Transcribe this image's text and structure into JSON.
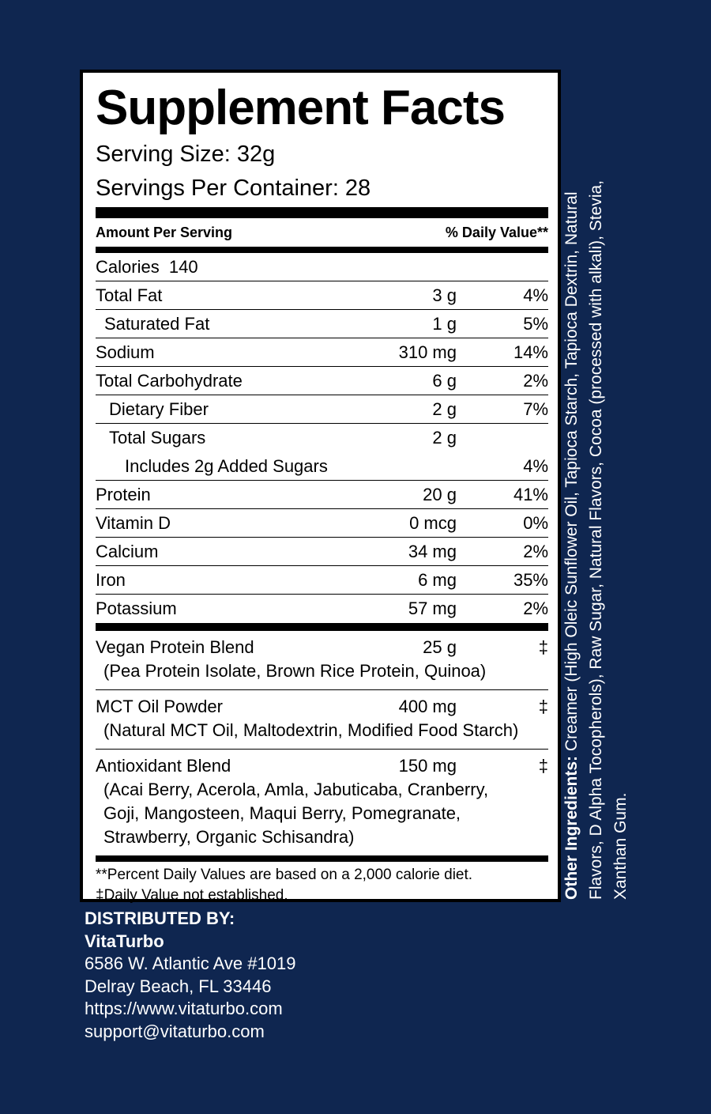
{
  "panel": {
    "title": "Supplement Facts",
    "serving_size": "Serving Size: 32g",
    "servings_per_container": "Servings Per Container: 28",
    "header_left": "Amount Per Serving",
    "header_right": "% Daily Value**",
    "calories": "Calories  140",
    "nutrients": [
      {
        "name": "Total Fat",
        "amount": "3 g",
        "dv": "4%"
      },
      {
        "name": "Saturated Fat",
        "amount": "1 g",
        "dv": "5%"
      },
      {
        "name": "Sodium",
        "amount": "310 mg",
        "dv": "14%"
      },
      {
        "name": "Total Carbohydrate",
        "amount": "6 g",
        "dv": "2%"
      },
      {
        "name": "Dietary Fiber",
        "amount": "2 g",
        "dv": "7%"
      },
      {
        "name": "Total Sugars",
        "amount": "2 g",
        "dv": ""
      },
      {
        "name": "Includes 2g Added Sugars",
        "amount": "",
        "dv": "4%"
      },
      {
        "name": "Protein",
        "amount": "20 g",
        "dv": "41%"
      },
      {
        "name": "Vitamin D",
        "amount": "0 mcg",
        "dv": "0%"
      },
      {
        "name": "Calcium",
        "amount": "34 mg",
        "dv": "2%"
      },
      {
        "name": "Iron",
        "amount": "6 mg",
        "dv": "35%"
      },
      {
        "name": "Potassium",
        "amount": "57 mg",
        "dv": "2%"
      }
    ],
    "blends": [
      {
        "name": "Vegan Protein Blend",
        "amount": "25 g",
        "dv": "‡",
        "lines": [
          "(Pea Protein Isolate, Brown Rice Protein, Quinoa)"
        ]
      },
      {
        "name": "MCT Oil Powder",
        "amount": "400 mg",
        "dv": "‡",
        "lines": [
          "(Natural MCT Oil, Maltodextrin, Modified Food Starch)"
        ]
      },
      {
        "name": "Antioxidant Blend",
        "amount": "150 mg",
        "dv": "‡",
        "lines": [
          "(Acai Berry, Acerola, Amla, Jabuticaba, Cranberry,",
          "Goji, Mangosteen, Maqui Berry, Pomegranate,",
          "Strawberry, Organic Schisandra)"
        ]
      }
    ],
    "footnote1": "**Percent Daily Values are based on a 2,000 calorie diet.",
    "footnote2": "‡Daily Value not established."
  },
  "distributor": {
    "heading": "DISTRIBUTED BY:",
    "name": "VitaTurbo",
    "address1": "6586 W. Atlantic Ave #1019",
    "address2": "Delray Beach, FL 33446",
    "website": "https://www.vitaturbo.com",
    "email": "support@vitaturbo.com"
  },
  "other_ingredients": {
    "label": "Other Ingredients:",
    "text": " Creamer (High Oleic Sunflower Oil, Tapioca Starch, Tapioca Dextrin, Natural Flavors, D Alpha Tocopherols), Raw Sugar, Natural Flavors, Cocoa (processed with alkali), Stevia, Xanthan Gum."
  },
  "colors": {
    "background": "#0f2650",
    "panel": "#ffffff",
    "text": "#000000"
  }
}
